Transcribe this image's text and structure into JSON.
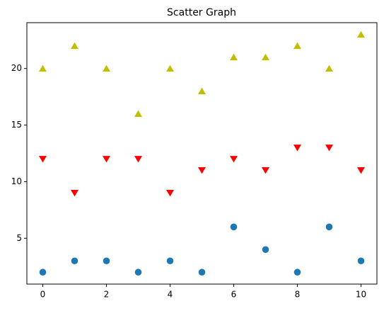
{
  "chart_data": {
    "type": "scatter",
    "title": "Scatter Graph",
    "x": [
      0,
      1,
      2,
      3,
      4,
      5,
      6,
      7,
      8,
      9,
      10
    ],
    "series": [
      {
        "color": "#1f77b4",
        "marker": "o",
        "values": [
          2,
          3,
          3,
          2,
          3,
          2,
          6,
          4,
          2,
          6,
          3
        ]
      },
      {
        "color": "#ff0000",
        "marker": "v",
        "values": [
          12,
          9,
          12,
          12,
          9,
          11,
          12,
          11,
          13,
          13,
          11
        ]
      },
      {
        "color": "#bfbf00",
        "marker": "^",
        "values": [
          20,
          22,
          20,
          16,
          20,
          18,
          21,
          21,
          22,
          20,
          23
        ]
      }
    ],
    "xlim": [
      -0.5,
      10.5
    ],
    "xticks": [
      0,
      2,
      4,
      6,
      8,
      10
    ],
    "ylim": [
      0.95,
      24.05
    ],
    "yticks": [
      5,
      10,
      15,
      20
    ],
    "grid": false
  }
}
